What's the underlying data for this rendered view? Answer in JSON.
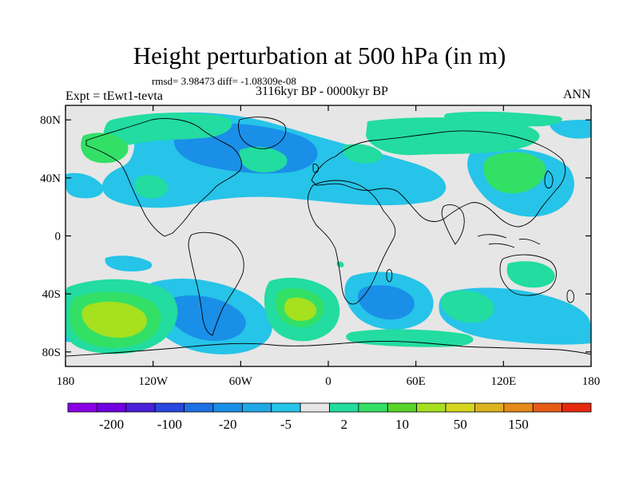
{
  "title": "Height perturbation at 500 hPa (in m)",
  "stats": "rmsd= 3.98473 diff= -1.08309e-08",
  "experiment": "Expt = tEwt1-tevta",
  "period": "3116kyr BP - 0000kyr BP",
  "season": "ANN",
  "lat_ticks": [
    "80N",
    "40N",
    "0",
    "40S",
    "80S"
  ],
  "lat_values": [
    80,
    40,
    0,
    -40,
    -80
  ],
  "lon_ticks": [
    "180",
    "120W",
    "60W",
    "0",
    "60E",
    "120E",
    "180"
  ],
  "lon_values": [
    -180,
    -120,
    -60,
    0,
    60,
    120,
    180
  ],
  "colorbar": {
    "labels": [
      "-200",
      "-100",
      "-20",
      "-5",
      "2",
      "10",
      "50",
      "150"
    ],
    "colors": [
      "#8a00e6",
      "#7000e0",
      "#4a1fd8",
      "#2a47e0",
      "#1f6fe6",
      "#1a8fe8",
      "#21a6e6",
      "#26c4e8",
      "#e6e6e6",
      "#22dca0",
      "#33e066",
      "#58d42a",
      "#a6e01e",
      "#d6d61e",
      "#dcb21e",
      "#e68a1a",
      "#e65a16",
      "#e62a10"
    ]
  },
  "map_colors": {
    "background": "#e6e6e6",
    "light_blue": "#26c4e8",
    "mid_blue": "#1a8fe8",
    "deep_blue": "#1f6fe6",
    "teal": "#22dca0",
    "green": "#33e066",
    "yellow_green": "#a6e01e",
    "coast": "#000000"
  }
}
